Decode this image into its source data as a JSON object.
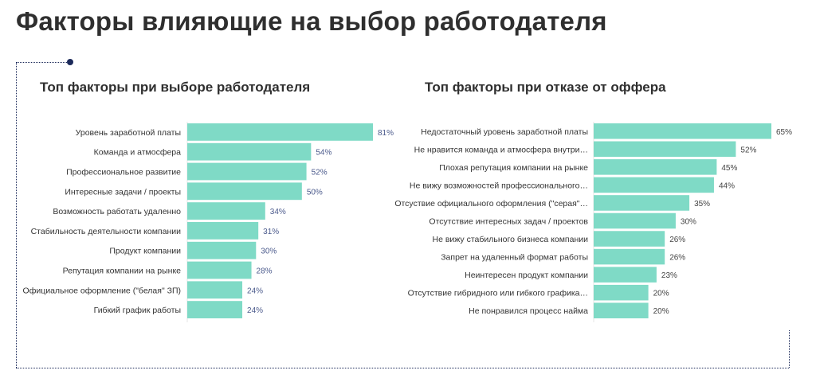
{
  "title": "Факторы влияющие на выбор работодателя",
  "colors": {
    "bar": "#7fdac6",
    "value_left": "#4b5a8c",
    "value_right": "#444444",
    "frame": "#1c2a5a"
  },
  "chart_data": [
    {
      "type": "bar",
      "orientation": "horizontal",
      "title": "Топ факторы при выборе работодателя",
      "categories": [
        "Уровень заработной платы",
        "Команда и атмосфера",
        "Профессиональное развитие",
        "Интересные задачи / проекты",
        "Возможность работать удаленно",
        "Стабильность деятельности компании",
        "Продукт компании",
        "Репутация компании на рынке",
        "Официальное оформление (\"белая\" ЗП)",
        "Гибкий график работы"
      ],
      "values": [
        81,
        54,
        52,
        50,
        34,
        31,
        30,
        28,
        24,
        24
      ],
      "value_labels": [
        "81%",
        "54%",
        "52%",
        "50%",
        "34%",
        "31%",
        "30%",
        "28%",
        "24%",
        "24%"
      ],
      "unit": "%"
    },
    {
      "type": "bar",
      "orientation": "horizontal",
      "title": "Топ факторы при отказе от оффера",
      "categories": [
        "Недостаточный уровень заработной платы",
        "Не нравится команда и атмосфера внутри…",
        "Плохая репутация компании на рынке",
        "Не вижу возможностей профессионального…",
        "Отсуствие официального оформления (\"серая\"…",
        "Отсутствие интересных задач / проектов",
        "Не вижу стабильного бизнеса компании",
        "Запрет на удаленный формат работы",
        "Неинтересен продукт компании",
        "Отсутствие гибридного или гибкого графика…",
        "Не понравился процесс найма"
      ],
      "values": [
        65,
        52,
        45,
        44,
        35,
        30,
        26,
        26,
        23,
        20,
        20
      ],
      "value_labels": [
        "65%",
        "52%",
        "45%",
        "44%",
        "35%",
        "30%",
        "26%",
        "26%",
        "23%",
        "20%",
        "20%"
      ],
      "unit": "%"
    }
  ]
}
